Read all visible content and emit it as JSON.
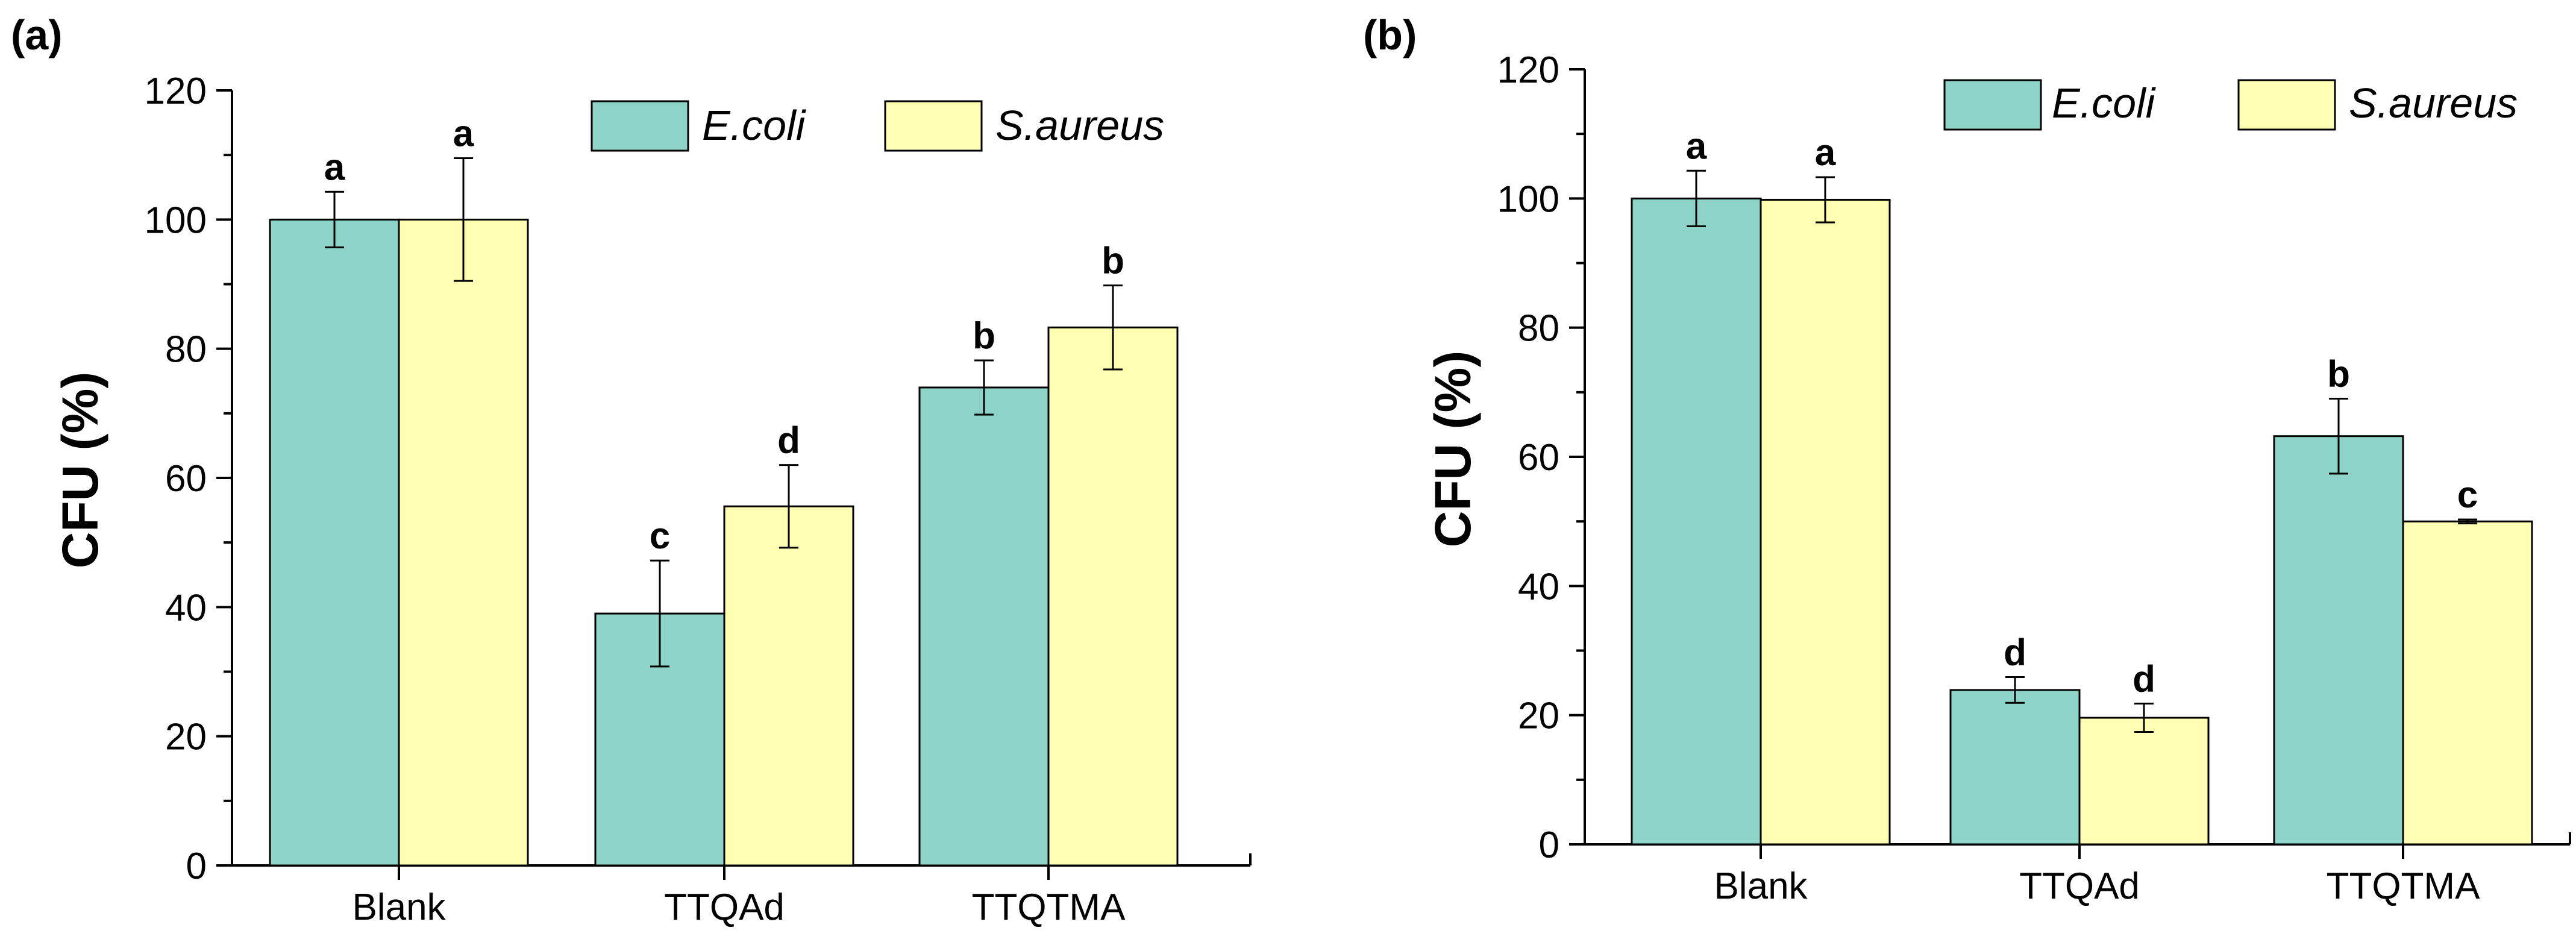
{
  "chart_data": [
    {
      "panel": "(a)",
      "type": "bar",
      "categories": [
        "Blank",
        "TTQAd",
        "TTQTMA"
      ],
      "ylabel": "CFU (%)",
      "xlabel": "",
      "ylim": [
        0,
        120
      ],
      "yticks": [
        0,
        20,
        40,
        60,
        80,
        100,
        120
      ],
      "ytick_labels": [
        "0",
        "20",
        "40",
        "60",
        "80",
        "100",
        "120"
      ],
      "legend_position": "top-right",
      "series": [
        {
          "name": "E.coli",
          "color": "#8dd3c7",
          "values": [
            100,
            39,
            74
          ],
          "errors": [
            4.3,
            8.2,
            4.2
          ],
          "labels": [
            "a",
            "c",
            "b"
          ]
        },
        {
          "name": "S.aureus",
          "color": "#ffffb3",
          "values": [
            100,
            55.6,
            83.3
          ],
          "errors": [
            9.5,
            6.4,
            6.5
          ],
          "labels": [
            "a",
            "d",
            "b"
          ]
        }
      ]
    },
    {
      "panel": "(b)",
      "type": "bar",
      "categories": [
        "Blank",
        "TTQAd",
        "TTQTMA"
      ],
      "ylabel": "CFU (%)",
      "xlabel": "",
      "ylim": [
        0,
        120
      ],
      "yticks": [
        0,
        20,
        40,
        60,
        80,
        100,
        120
      ],
      "ytick_labels": [
        "0",
        "20",
        "40",
        "60",
        "80",
        "100",
        "120"
      ],
      "legend_position": "top-right",
      "series": [
        {
          "name": "E.coli",
          "color": "#8dd3c7",
          "values": [
            100,
            23.9,
            63.2
          ],
          "errors": [
            4.3,
            2.0,
            5.8
          ],
          "labels": [
            "a",
            "d",
            "b"
          ]
        },
        {
          "name": "S.aureus",
          "color": "#ffffb3",
          "values": [
            99.8,
            19.6,
            50
          ],
          "errors": [
            3.5,
            2.2,
            0.3
          ],
          "labels": [
            "a",
            "d",
            "c"
          ]
        }
      ]
    }
  ]
}
